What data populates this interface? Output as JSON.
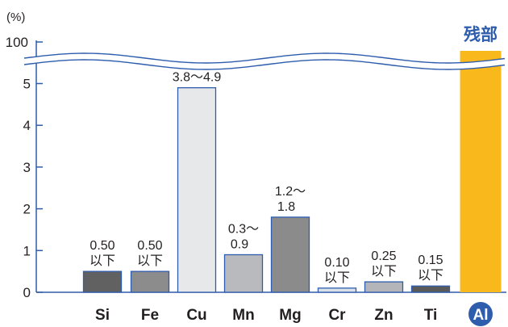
{
  "chart_data": {
    "type": "bar",
    "yunit": "(%)",
    "yticks": [
      "0",
      "1",
      "2",
      "3",
      "4",
      "5",
      "100"
    ],
    "ylim": [
      0,
      5
    ],
    "categories": [
      "Si",
      "Fe",
      "Cu",
      "Mn",
      "Mg",
      "Cr",
      "Zn",
      "Ti",
      "Al"
    ],
    "values": [
      0.5,
      0.5,
      4.9,
      0.9,
      1.8,
      0.1,
      0.25,
      0.15,
      100
    ],
    "value_labels": [
      [
        "0.50",
        "以下"
      ],
      [
        "0.50",
        "以下"
      ],
      [
        "3.8～4.9"
      ],
      [
        "0.3～",
        "0.9"
      ],
      [
        "1.2～",
        "1.8"
      ],
      [
        "0.10",
        "以下"
      ],
      [
        "0.25",
        "以下"
      ],
      [
        "0.15",
        "以下"
      ],
      [
        "残部"
      ]
    ],
    "bar_colors": [
      "#616161",
      "#8c8c8c",
      "#e6e8ea",
      "#b8babd",
      "#8b8b8b",
      "#d9e0e7",
      "#b3b5b8",
      "#5a5a5a",
      "#f9b91c"
    ],
    "bar_border": "#2e5dae",
    "axis_break": true,
    "grid": false,
    "accent": "#2e5dae"
  }
}
